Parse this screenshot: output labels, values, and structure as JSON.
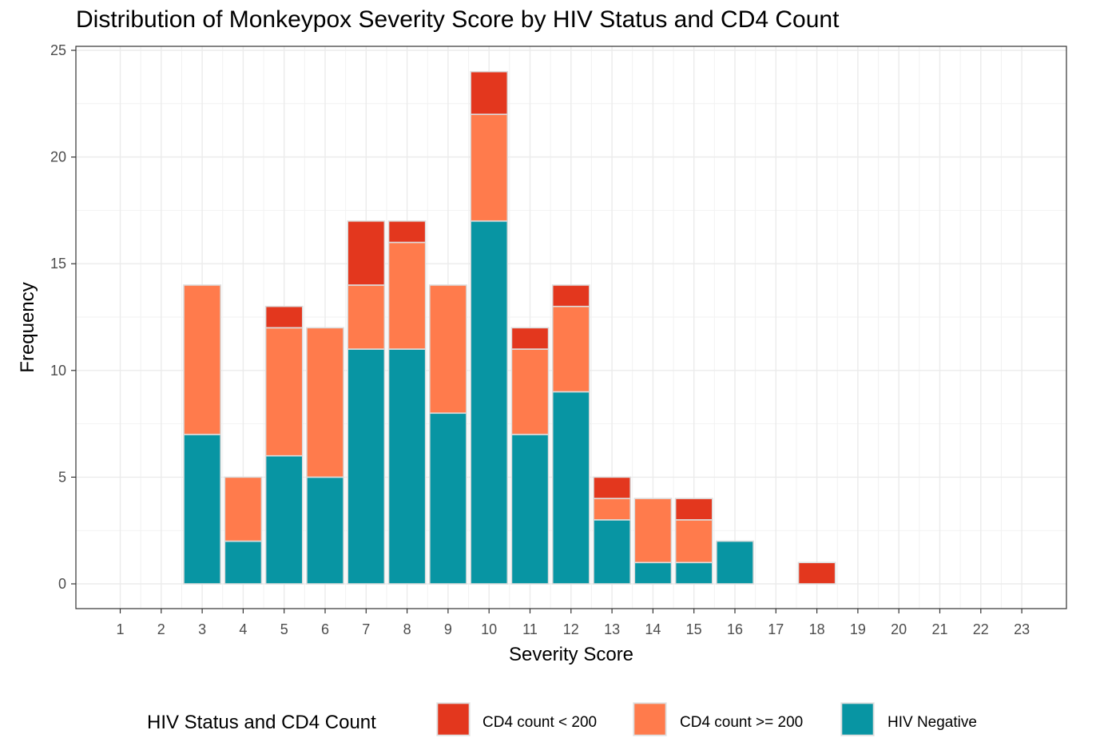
{
  "chart_data": {
    "type": "bar",
    "stacked": true,
    "title": "Distribution of Monkeypox Severity Score by HIV Status and CD4 Count",
    "xlabel": "Severity Score",
    "ylabel": "Frequency",
    "categories": [
      "1",
      "2",
      "3",
      "4",
      "5",
      "6",
      "7",
      "8",
      "9",
      "10",
      "11",
      "12",
      "13",
      "14",
      "15",
      "16",
      "17",
      "18",
      "19",
      "20",
      "21",
      "22",
      "23"
    ],
    "series": [
      {
        "name": "HIV Negative",
        "color": "#0895a3",
        "values": [
          0,
          0,
          7,
          2,
          6,
          5,
          11,
          11,
          8,
          17,
          7,
          9,
          3,
          1,
          1,
          2,
          0,
          0,
          0,
          0,
          0,
          0,
          0
        ]
      },
      {
        "name": "CD4 count >= 200",
        "color": "#ff7b4c",
        "values": [
          0,
          0,
          7,
          3,
          6,
          7,
          3,
          5,
          6,
          5,
          4,
          4,
          1,
          3,
          2,
          0,
          0,
          0,
          0,
          0,
          0,
          0,
          0
        ]
      },
      {
        "name": "CD4 count < 200",
        "color": "#e3371e",
        "values": [
          0,
          0,
          0,
          0,
          1,
          0,
          3,
          1,
          0,
          2,
          1,
          1,
          1,
          0,
          1,
          0,
          0,
          1,
          0,
          0,
          0,
          0,
          0
        ]
      }
    ],
    "ylim": [
      0,
      25
    ],
    "yticks": [
      0,
      5,
      10,
      15,
      20,
      25
    ],
    "grid": true,
    "legend": {
      "title": "HIV Status and CD4 Count",
      "placement": "bottom",
      "order": [
        "CD4 count < 200",
        "CD4 count >= 200",
        "HIV Negative"
      ]
    }
  }
}
